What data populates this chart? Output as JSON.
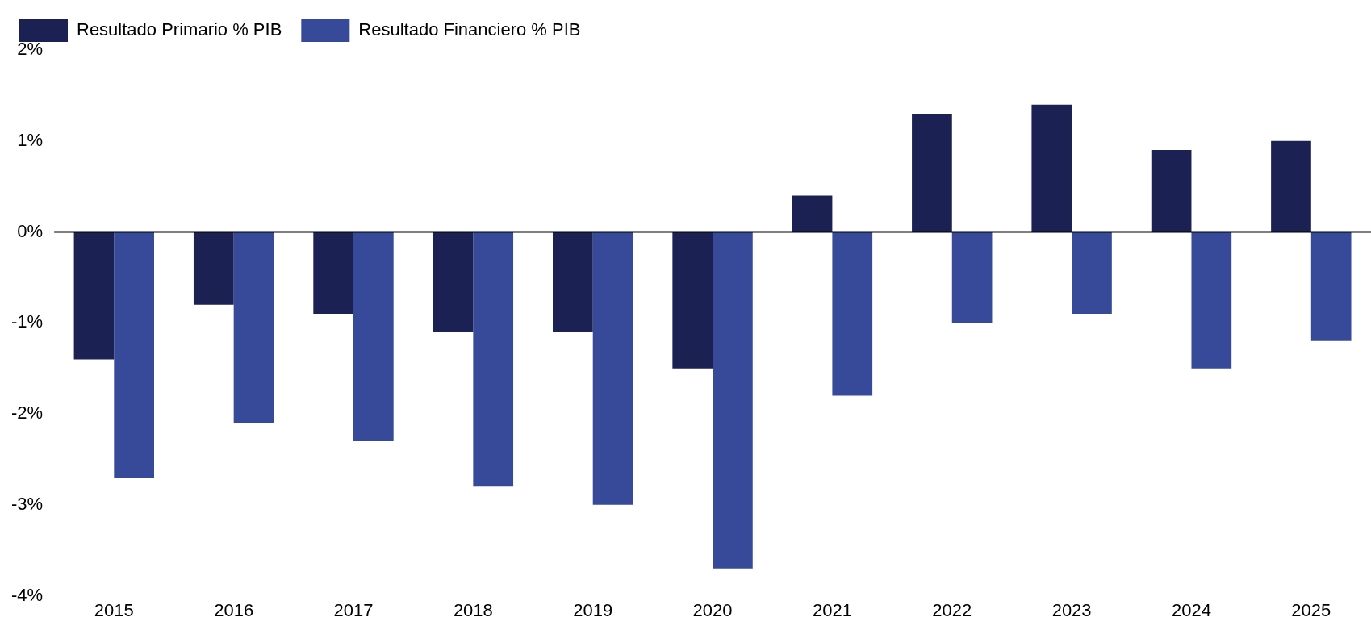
{
  "chart_data": {
    "type": "bar",
    "categories": [
      "2015",
      "2016",
      "2017",
      "2018",
      "2019",
      "2020",
      "2021",
      "2022",
      "2023",
      "2024",
      "2025"
    ],
    "series": [
      {
        "name": "Resultado Primario % PIB",
        "color": "#1b2152",
        "values": [
          -1.4,
          -0.8,
          -0.9,
          -1.1,
          -1.1,
          -1.5,
          0.4,
          1.3,
          1.4,
          0.9,
          1.0
        ]
      },
      {
        "name": "Resultado Financiero % PIB",
        "color": "#374a9a",
        "values": [
          -2.7,
          -2.1,
          -2.3,
          -2.8,
          -3.0,
          -3.7,
          -1.8,
          -1.0,
          -0.9,
          -1.5,
          -1.2
        ]
      }
    ],
    "ylim": [
      -4,
      2
    ],
    "yticks": [
      {
        "value": -4,
        "label": "-4%"
      },
      {
        "value": -3,
        "label": "-3%"
      },
      {
        "value": -2,
        "label": "-2%"
      },
      {
        "value": -1,
        "label": "-1%"
      },
      {
        "value": 0,
        "label": "0%"
      },
      {
        "value": 1,
        "label": "1%"
      },
      {
        "value": 2,
        "label": "2%"
      }
    ],
    "ref_lines": [
      {
        "axis": "y",
        "value": 0,
        "color": "#000000"
      }
    ],
    "grid": false,
    "legend": "top left"
  }
}
